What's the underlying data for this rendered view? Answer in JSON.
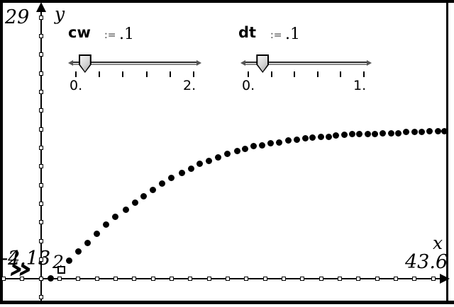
{
  "app": {
    "screen": "graph-view"
  },
  "axes": {
    "y_name": "y",
    "x_name": "x",
    "y_max_label": "29",
    "y_min_label": "-2.13",
    "x_min_label": "-4.13",
    "x_max_label": "43.6",
    "x_tick_label": "2"
  },
  "chevron": "»",
  "sliders": [
    {
      "name": "cw",
      "assign": ":=",
      "value": ".1",
      "min": 0,
      "max": 2,
      "val": 0.1,
      "min_label": "0.",
      "max_label": "2."
    },
    {
      "name": "dt",
      "assign": ":=",
      "value": ".1",
      "min": 0,
      "max": 1,
      "val": 0.1,
      "min_label": "0.",
      "max_label": "1."
    }
  ],
  "chart_data": {
    "type": "scatter",
    "title": "",
    "xlabel": "x",
    "ylabel": "y",
    "xlim": [
      -4.13,
      43.6
    ],
    "ylim": [
      -2.13,
      29
    ],
    "tick_step": 2,
    "grid": false,
    "legend": false,
    "marker": "filled-circle",
    "sliders": {
      "cw": 0.1,
      "dt": 0.1
    },
    "open_point": [
      2.2,
      0.9
    ],
    "points": [
      [
        1.1,
        0.0
      ],
      [
        3.0,
        1.9
      ],
      [
        4.0,
        2.9
      ],
      [
        5.0,
        3.8
      ],
      [
        6.0,
        4.8
      ],
      [
        7.0,
        5.8
      ],
      [
        8.0,
        6.6
      ],
      [
        9.1,
        7.4
      ],
      [
        10.1,
        8.1
      ],
      [
        11.0,
        8.8
      ],
      [
        12.0,
        9.5
      ],
      [
        13.0,
        10.2
      ],
      [
        14.0,
        10.8
      ],
      [
        15.1,
        11.3
      ],
      [
        16.1,
        11.8
      ],
      [
        17.0,
        12.3
      ],
      [
        18.0,
        12.6
      ],
      [
        19.0,
        13.0
      ],
      [
        20.0,
        13.4
      ],
      [
        21.0,
        13.7
      ],
      [
        21.9,
        13.9
      ],
      [
        22.8,
        14.2
      ],
      [
        23.7,
        14.3
      ],
      [
        24.6,
        14.5
      ],
      [
        25.5,
        14.6
      ],
      [
        26.5,
        14.8
      ],
      [
        27.4,
        14.9
      ],
      [
        28.3,
        15.0
      ],
      [
        29.1,
        15.1
      ],
      [
        30.0,
        15.2
      ],
      [
        30.8,
        15.2
      ],
      [
        31.6,
        15.3
      ],
      [
        32.5,
        15.4
      ],
      [
        33.3,
        15.5
      ],
      [
        34.1,
        15.5
      ],
      [
        35.0,
        15.5
      ],
      [
        35.8,
        15.5
      ],
      [
        36.6,
        15.6
      ],
      [
        37.5,
        15.6
      ],
      [
        38.3,
        15.6
      ],
      [
        39.1,
        15.7
      ],
      [
        40.0,
        15.7
      ],
      [
        40.8,
        15.7
      ],
      [
        41.6,
        15.8
      ],
      [
        42.5,
        15.8
      ],
      [
        43.2,
        15.8
      ]
    ]
  }
}
